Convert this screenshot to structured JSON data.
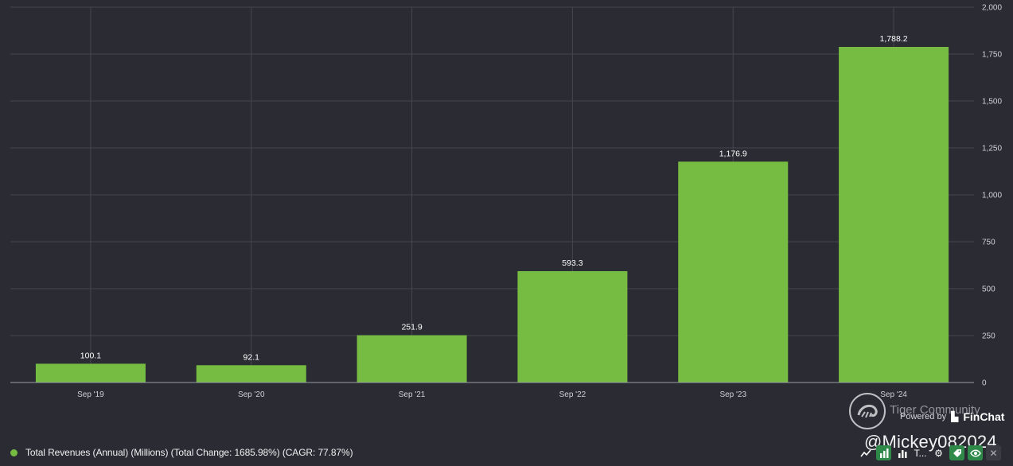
{
  "chart_data": {
    "type": "bar",
    "categories": [
      "Sep '19",
      "Sep '20",
      "Sep '21",
      "Sep '22",
      "Sep '23",
      "Sep '24"
    ],
    "values": [
      100.1,
      92.1,
      251.9,
      593.3,
      1176.9,
      1788.2
    ],
    "data_labels": [
      "100.1",
      "92.1",
      "251.9",
      "593.3",
      "1,176.9",
      "1,788.2"
    ],
    "ylim": [
      0,
      2000
    ],
    "yticks": [
      0,
      250,
      500,
      750,
      1000,
      1250,
      1500,
      1750,
      2000
    ],
    "ytick_labels": [
      "0",
      "250",
      "500",
      "750",
      "1,000",
      "1,250",
      "1,500",
      "1,750",
      "2,000"
    ],
    "y_axis_side": "right",
    "grid": true,
    "bar_color": "#76bc43",
    "series": [
      {
        "name": "Total Revenues (Annual) (Millions) (Total Change: 1685.98%) (CAGR: 77.87%)",
        "values": [
          100.1,
          92.1,
          251.9,
          593.3,
          1176.9,
          1788.2
        ]
      }
    ]
  },
  "legend": {
    "label": "Total Revenues (Annual) (Millions) (Total Change: 1685.98%) (CAGR: 77.87%)",
    "color": "#76bc43"
  },
  "watermark": {
    "community": "Tiger Community",
    "powered_by": "Powered by",
    "brand": "FinChat",
    "handle": "@Mickey082024"
  },
  "toolbar": {
    "icons": [
      "trend-line-icon",
      "bar-chart-icon",
      "bar-chart-outline-icon",
      "text-icon",
      "gear-icon",
      "tag-icon",
      "eye-icon",
      "close-icon"
    ],
    "text_label": "T..."
  }
}
